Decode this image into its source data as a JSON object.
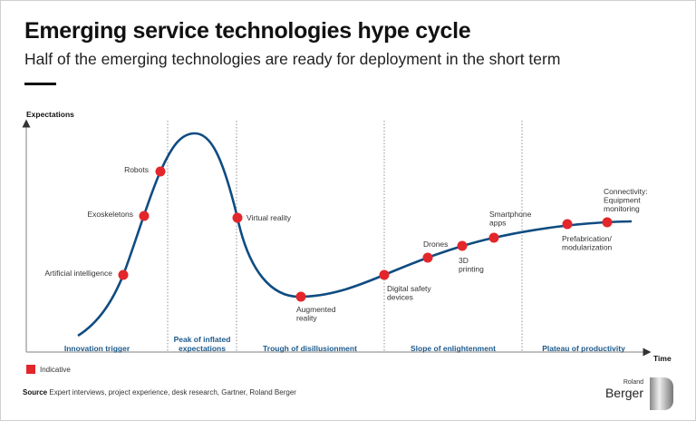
{
  "header": {
    "title": "Emerging service technologies hype cycle",
    "subtitle": "Half of the emerging technologies are ready for deployment in the short term"
  },
  "chart_data": {
    "type": "line",
    "ylabel": "Expectations",
    "xlabel": "Time",
    "grid": false,
    "curve_color": "#0f4c81",
    "marker_color": "#e3262b",
    "phases": [
      "Innovation trigger",
      "Peak of inflated expectations",
      "Trough of disillusionment",
      "Slope of enlightenment",
      "Plateau of productivity"
    ],
    "points": [
      {
        "label": "Artificial intelligence",
        "phase": "Innovation trigger"
      },
      {
        "label": "Exoskeletons",
        "phase": "Innovation trigger"
      },
      {
        "label": "Robots",
        "phase": "Innovation trigger"
      },
      {
        "label": "Virtual reality",
        "phase": "Trough of disillusionment"
      },
      {
        "label": "Augmented reality",
        "phase": "Trough of disillusionment"
      },
      {
        "label": "Digital safety devices",
        "phase": "Slope of enlightenment"
      },
      {
        "label": "Drones",
        "phase": "Slope of enlightenment"
      },
      {
        "label": "3D printing",
        "phase": "Slope of enlightenment"
      },
      {
        "label": "Smartphone apps",
        "phase": "Slope of enlightenment"
      },
      {
        "label": "Prefabrication/ modularization",
        "phase": "Plateau of productivity"
      },
      {
        "label": "Connectivity: Equipment monitoring",
        "phase": "Plateau of productivity"
      }
    ],
    "legend": {
      "label": "Indicative",
      "color": "#e3262b"
    }
  },
  "footer": {
    "source_label": "Source",
    "source_text": "Expert interviews, project experience, desk research, Gartner, Roland Berger",
    "logo_top": "Roland",
    "logo_main": "Berger"
  }
}
